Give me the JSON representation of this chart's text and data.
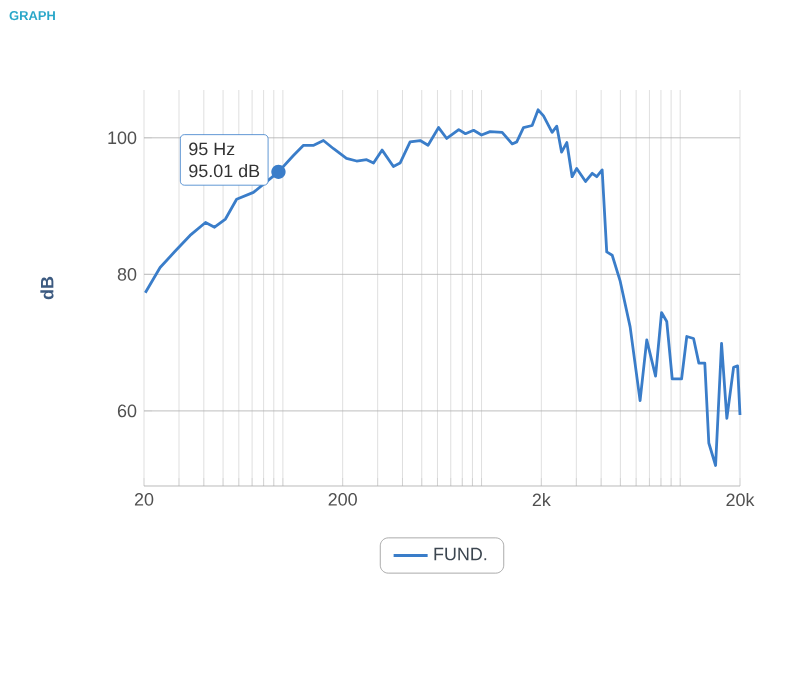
{
  "chart_data": {
    "type": "line",
    "title": "GRAPH",
    "ylabel": "dB",
    "x": [
      20.3,
      24.1,
      28.5,
      34.1,
      40.8,
      45.3,
      51.4,
      58.5,
      71.1,
      95,
      113,
      127,
      143,
      160,
      180,
      209,
      235,
      264,
      286,
      316,
      360,
      389,
      437,
      491,
      538,
      608,
      668,
      768,
      830,
      912,
      1000,
      1104,
      1270,
      1426,
      1504,
      1626,
      1798,
      1927,
      2051,
      2266,
      2392,
      2529,
      2687,
      2857,
      3013,
      3340,
      3607,
      3802,
      4047,
      4267,
      4547,
      4988,
      5597,
      6281,
      6787,
      7516,
      8054,
      8556,
      9117,
      10163,
      10792,
      11675,
      12412,
      13300,
      13930,
      15070,
      16150,
      17170,
      18570,
      19450,
      20000
    ],
    "series": [
      {
        "name": "FUND.",
        "color": "#3a7dc9",
        "values": [
          77.3,
          81.0,
          83.3,
          85.7,
          87.6,
          86.9,
          88.1,
          91.0,
          92.0,
          95.01,
          97.4,
          98.9,
          98.9,
          99.6,
          98.4,
          97.0,
          96.6,
          96.8,
          96.3,
          98.2,
          95.8,
          96.3,
          99.4,
          99.6,
          98.9,
          101.5,
          99.9,
          101.2,
          100.6,
          101.1,
          100.4,
          100.9,
          100.8,
          99.1,
          99.4,
          101.5,
          101.8,
          104.1,
          103.2,
          100.8,
          101.7,
          97.9,
          99.3,
          94.3,
          95.5,
          93.6,
          94.8,
          94.3,
          95.3,
          83.3,
          82.8,
          79.0,
          72.3,
          61.5,
          70.4,
          65.1,
          74.4,
          73.1,
          64.7,
          64.7,
          70.9,
          70.6,
          67.0,
          67.0,
          55.3,
          52.0,
          69.9,
          58.9,
          66.4,
          66.6,
          59.4
        ]
      }
    ],
    "log": "x",
    "xlim": [
      20,
      20000
    ],
    "ylim": [
      49,
      107
    ],
    "xticks": [
      20,
      {
        "value": 30,
        "label": null
      },
      {
        "value": 40,
        "label": null
      },
      {
        "value": 50,
        "label": null
      },
      {
        "value": 60,
        "label": null
      },
      {
        "value": 70,
        "label": null
      },
      {
        "value": 80,
        "label": null
      },
      {
        "value": 90,
        "label": null
      },
      {
        "value": 100,
        "label": null
      },
      200,
      {
        "value": 300,
        "label": null
      },
      {
        "value": 400,
        "label": null
      },
      {
        "value": 500,
        "label": null
      },
      {
        "value": 600,
        "label": null
      },
      {
        "value": 700,
        "label": null
      },
      {
        "value": 800,
        "label": null
      },
      {
        "value": 900,
        "label": null
      },
      {
        "value": 1000,
        "label": null
      },
      {
        "value": 2000,
        "label": "2k"
      },
      {
        "value": 3000,
        "label": null
      },
      {
        "value": 4000,
        "label": null
      },
      {
        "value": 5000,
        "label": null
      },
      {
        "value": 6000,
        "label": null
      },
      {
        "value": 7000,
        "label": null
      },
      {
        "value": 8000,
        "label": null
      },
      {
        "value": 9000,
        "label": null
      },
      {
        "value": 10000,
        "label": null
      },
      {
        "value": 20000,
        "label": "20k"
      }
    ],
    "yticks": [
      60,
      80,
      100
    ],
    "grid": true,
    "legend": "bottom",
    "annotations": [
      {
        "text": "95 Hz",
        "x": 95,
        "y": 95.01
      },
      {
        "text": "95.01 dB",
        "x": 95,
        "y": 95.01
      }
    ]
  }
}
